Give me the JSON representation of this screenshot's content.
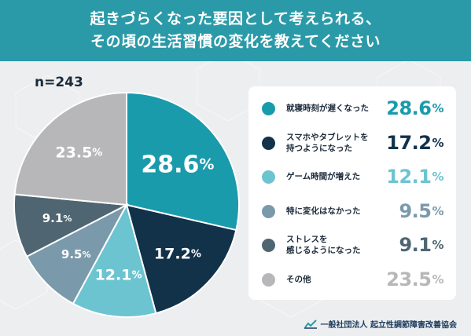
{
  "title_lines": [
    "起きづらくなった要因として考えられる、",
    "その頃の生活習慣の変化を教えてください"
  ],
  "sample_size": "n=243",
  "organization": "一般社団法人 起立性調節障害改善協会",
  "colors": {
    "header": "#2a9aa8",
    "background": "#eceef0"
  },
  "chart_data": {
    "type": "pie",
    "title": "起きづらくなった要因として考えられる、その頃の生活習慣の変化を教えてください",
    "unit": "%",
    "start_angle_deg": 0,
    "direction": "clockwise",
    "legend_position": "right",
    "slices": [
      {
        "label": "就寝時刻が遅くなった",
        "value": 28.6,
        "display": "28.6",
        "color": "#1a9bac",
        "value_color": "#1a9bac"
      },
      {
        "label": "スマホやタブレットを持つようになった",
        "value": 17.2,
        "display": "17.2",
        "color": "#12324a",
        "value_color": "#12324a"
      },
      {
        "label": "ゲーム時間が増えた",
        "value": 12.1,
        "display": "12.1",
        "color": "#6cc4d0",
        "value_color": "#6cc4d0"
      },
      {
        "label": "特に変化はなかった",
        "value": 9.5,
        "display": "9.5",
        "color": "#7a9aab",
        "value_color": "#7a9aab"
      },
      {
        "label": "ストレスを感じるようになった",
        "value": 9.1,
        "display": "9.1",
        "color": "#4f6672",
        "value_color": "#4f6672"
      },
      {
        "label": "その他",
        "value": 23.5,
        "display": "23.5",
        "color": "#b7b7b9",
        "value_color": "#b7b7b9"
      }
    ]
  }
}
